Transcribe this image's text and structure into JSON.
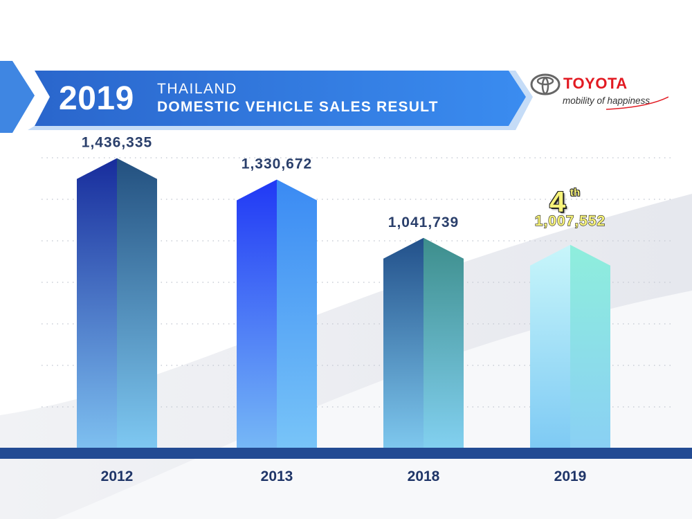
{
  "header": {
    "year": "2019",
    "line1": "THAILAND",
    "line2": "DOMESTIC VEHICLE SALES RESULT"
  },
  "logo": {
    "wordmark": "TOYOTA",
    "tagline": "mobility of happiness"
  },
  "rank": {
    "number": "4",
    "suffix": "th"
  },
  "colors": {
    "banner": "#2f7fe6",
    "bottom_bar": "#234b93",
    "value_label": "#2a3f6b",
    "highlight_label": "#f7f37a",
    "logo_red": "#e21a22"
  },
  "chart_data": {
    "type": "bar",
    "categories": [
      "2012",
      "2013",
      "2018",
      "2019"
    ],
    "values": [
      1436335,
      1330672,
      1041739,
      1007552
    ],
    "value_labels": [
      "1,436,335",
      "1,330,672",
      "1,041,739",
      "1,007,552"
    ],
    "highlight_index": 3,
    "ylim": [
      0,
      1500000
    ],
    "grid": true,
    "legend": "none"
  }
}
